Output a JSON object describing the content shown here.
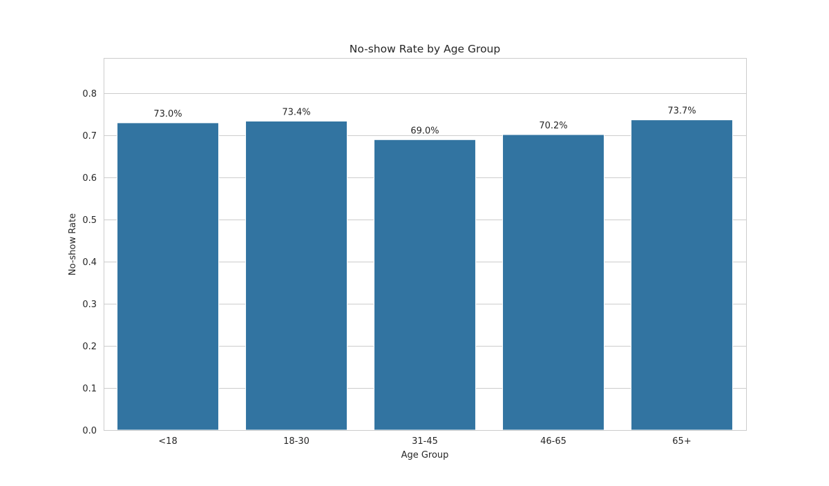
{
  "chart_data": {
    "type": "bar",
    "title": "No-show Rate by Age Group",
    "xlabel": "Age Group",
    "ylabel": "No-show Rate",
    "categories": [
      "<18",
      "18-30",
      "31-45",
      "46-65",
      "65+"
    ],
    "values": [
      0.73,
      0.734,
      0.69,
      0.702,
      0.737
    ],
    "data_labels": [
      "73.0%",
      "73.4%",
      "69.0%",
      "70.2%",
      "73.7%"
    ],
    "yticks": [
      0.0,
      0.1,
      0.2,
      0.3,
      0.4,
      0.5,
      0.6,
      0.7,
      0.8
    ],
    "ytick_labels": [
      "0.0",
      "0.1",
      "0.2",
      "0.3",
      "0.4",
      "0.5",
      "0.6",
      "0.7",
      "0.8"
    ],
    "ylim": [
      0,
      0.884
    ],
    "grid": true,
    "bar_color": "#3274a1"
  }
}
